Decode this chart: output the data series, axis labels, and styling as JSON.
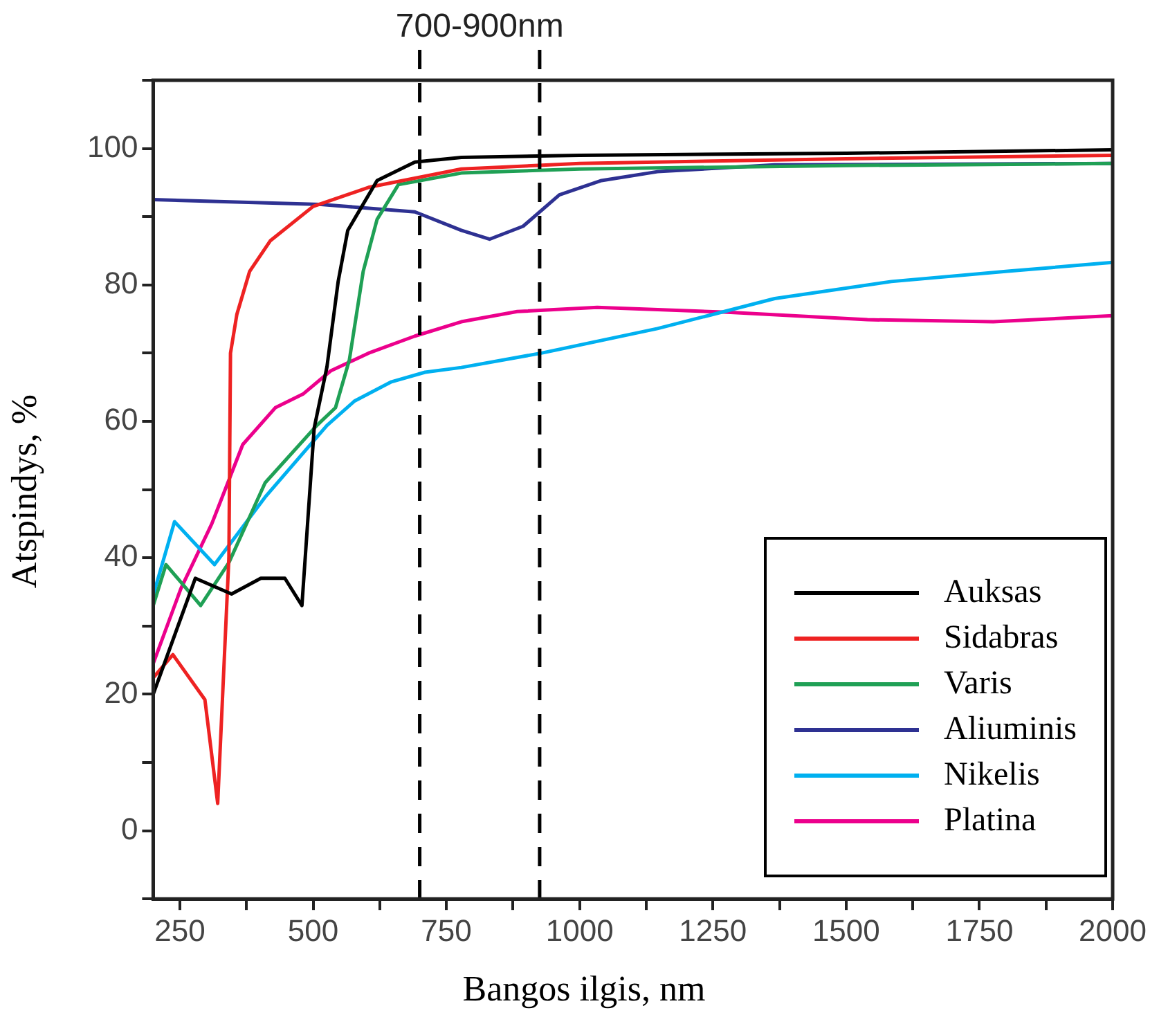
{
  "chart_data": {
    "type": "line",
    "xlabel": "Bangos ilgis, nm",
    "ylabel": "Atspindys, %",
    "annotations": [
      "700-900nm"
    ],
    "xlim": [
      200,
      2000
    ],
    "ylim": [
      -10,
      110
    ],
    "xticks": [
      {
        "value": 250,
        "label": "250"
      },
      {
        "value": 375,
        "label": null
      },
      {
        "value": 500,
        "label": "500"
      },
      {
        "value": 625,
        "label": null
      },
      {
        "value": 750,
        "label": "750"
      },
      {
        "value": 875,
        "label": null
      },
      {
        "value": 1000,
        "label": "1000"
      },
      {
        "value": 1125,
        "label": null
      },
      {
        "value": 1250,
        "label": "1250"
      },
      {
        "value": 1375,
        "label": null
      },
      {
        "value": 1500,
        "label": "1500"
      },
      {
        "value": 1625,
        "label": null
      },
      {
        "value": 1750,
        "label": "1750"
      },
      {
        "value": 1875,
        "label": null
      },
      {
        "value": 2000,
        "label": "2000"
      }
    ],
    "yticks": [
      {
        "value": -10,
        "label": null
      },
      0,
      {
        "value": 10,
        "label": null
      },
      20,
      {
        "value": 30,
        "label": null
      },
      40,
      {
        "value": 50,
        "label": null
      },
      60,
      {
        "value": 70,
        "label": null
      },
      80,
      {
        "value": 90,
        "label": null
      },
      100,
      {
        "value": 110,
        "label": null
      }
    ],
    "grid": false,
    "legend": "bottom right",
    "marker": "none",
    "line_style": "solid",
    "ref_lines": [
      {
        "axis": "x",
        "value": 700,
        "line_style": "dashed",
        "color": "#000000"
      },
      {
        "axis": "x",
        "value": 925,
        "line_style": "dashed",
        "color": "#000000"
      }
    ],
    "series": [
      {
        "name": "Auksas",
        "color": "#000000",
        "x": [
          200,
          279,
          347,
          402,
          447,
          479,
          502,
          526,
          547,
          565,
          620,
          691,
          778,
          1000,
          1500,
          2000
        ],
        "values": [
          20,
          37,
          34.7,
          37,
          37,
          33,
          59,
          68,
          80.5,
          88,
          95.3,
          98,
          98.7,
          99,
          99.3,
          99.8
        ]
      },
      {
        "name": "Sidabras",
        "color": "#ee2222",
        "x": [
          200,
          237,
          297,
          321,
          342,
          345,
          357,
          381,
          420,
          500,
          604,
          778,
          1000,
          1500,
          2000
        ],
        "values": [
          22.4,
          25.8,
          19.2,
          4,
          40,
          70,
          75.7,
          82,
          86.5,
          91.5,
          94.3,
          97,
          97.8,
          98.5,
          99
        ]
      },
      {
        "name": "Varis",
        "color": "#1fa055",
        "x": [
          200,
          224,
          289,
          342,
          410,
          507,
          542,
          568,
          594,
          620,
          660,
          778,
          1000,
          1500,
          2000
        ],
        "values": [
          33,
          39,
          33,
          39.3,
          51,
          59.4,
          62,
          69,
          82,
          89.6,
          94.7,
          96.4,
          97,
          97.5,
          97.8
        ]
      },
      {
        "name": "Aliuminis",
        "color": "#2e3192",
        "x": [
          200,
          515,
          691,
          778,
          831,
          894,
          962,
          1041,
          1146,
          1366,
          2000
        ],
        "values": [
          92.5,
          91.8,
          90.7,
          88,
          86.7,
          88.6,
          93.2,
          95.3,
          96.6,
          97.6,
          97.8
        ]
      },
      {
        "name": "Nikelis",
        "color": "#00b0f0",
        "x": [
          200,
          240,
          315,
          410,
          526,
          578,
          647,
          710,
          778,
          928,
          1146,
          1366,
          1585,
          1803,
          2000
        ],
        "values": [
          34.5,
          45.3,
          39,
          48.9,
          59.4,
          63,
          65.8,
          67.2,
          67.9,
          70,
          73.6,
          78,
          80.5,
          82,
          83.3
        ]
      },
      {
        "name": "Platina",
        "color": "#ec008c",
        "x": [
          200,
          252,
          310,
          368,
          429,
          481,
          533,
          604,
          691,
          778,
          883,
          1033,
          1277,
          1540,
          1776,
          2000
        ],
        "values": [
          24.5,
          35.5,
          45,
          56.6,
          62,
          64,
          67.4,
          70,
          72.5,
          74.6,
          76.1,
          76.7,
          76,
          74.9,
          74.6,
          75.5
        ]
      }
    ]
  }
}
